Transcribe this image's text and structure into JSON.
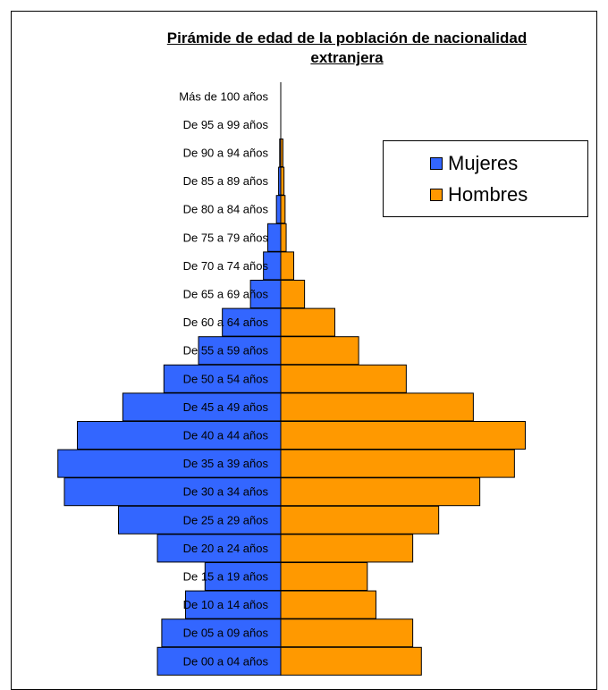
{
  "chart_data": {
    "type": "bar",
    "orientation": "horizontal",
    "title": "Pirámide de edad de la población de nacionalidad extranjera",
    "title_lines": [
      "Pirámide de edad de la población de nacionalidad",
      "extranjera"
    ],
    "categories": [
      "Más de 100 años",
      "De 95 a 99 años",
      "De 90 a 94 años",
      "De 85 a 89 años",
      "De 80 a 84 años",
      "De 75 a 79 años",
      "De 70 a 74 años",
      "De 65 a 69 años",
      "De 60 a 64 años",
      "De 55 a 59 años",
      "De 50 a 54 años",
      "De 45 a 49 años",
      "De 40 a 44 años",
      "De 35 a 39 años",
      "De 30 a 34 años",
      "De 25 a 29 años",
      "De 20 a 24 años",
      "De 15 a 19 años",
      "De 10 a 14 años",
      "De 05 a 09 años",
      "De 00 a 04 años"
    ],
    "series": [
      {
        "name": "Mujeres",
        "color": "#3366ff",
        "values": [
          0,
          0,
          0.5,
          1,
          2,
          6,
          8,
          14,
          27,
          38,
          54,
          73,
          94,
          103,
          100,
          75,
          57,
          35,
          44,
          55,
          57
        ]
      },
      {
        "name": "Hombres",
        "color": "#ff9900",
        "values": [
          0,
          0,
          1,
          1.5,
          2,
          2.5,
          6,
          11,
          25,
          36,
          58,
          89,
          113,
          108,
          92,
          73,
          61,
          40,
          44,
          61,
          65
        ]
      }
    ],
    "legend": "right",
    "grid": false
  }
}
